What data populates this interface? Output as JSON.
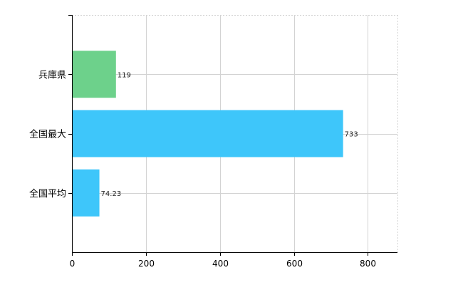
{
  "chart_data": {
    "type": "bar",
    "orientation": "horizontal",
    "categories": [
      "兵庫県",
      "全国最大",
      "全国平均"
    ],
    "values": [
      119,
      733,
      74.23
    ],
    "data_labels": [
      "119",
      "733",
      "74.23"
    ],
    "bar_colors": [
      "#6dd18b",
      "#3ec6fa",
      "#3ec6fa"
    ],
    "xlim": [
      0,
      880
    ],
    "x_ticks": [
      0,
      200,
      400,
      600,
      800
    ],
    "x_tick_labels": [
      "0",
      "200",
      "400",
      "600",
      "800"
    ],
    "grid": true,
    "legend": "none",
    "title": "",
    "xlabel": "",
    "ylabel": ""
  }
}
